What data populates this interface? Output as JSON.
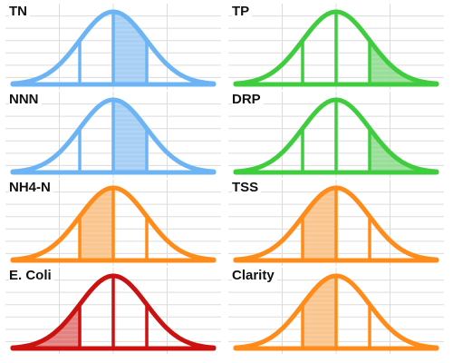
{
  "chart_data": [
    {
      "type": "area",
      "title": "TN",
      "color": "#6db4f5",
      "fill": "#9fcaf3",
      "shaded_segment": "center-right"
    },
    {
      "type": "area",
      "title": "TP",
      "color": "#3fcd3f",
      "fill": "#8edb8e",
      "shaded_segment": "right"
    },
    {
      "type": "area",
      "title": "NNN",
      "color": "#6db4f5",
      "fill": "#9fcaf3",
      "shaded_segment": "center-right"
    },
    {
      "type": "area",
      "title": "DRP",
      "color": "#3fcd3f",
      "fill": "#8edb8e",
      "shaded_segment": "right"
    },
    {
      "type": "area",
      "title": "NH4-N",
      "color": "#ff8c1a",
      "fill": "#f9c083",
      "shaded_segment": "center-left"
    },
    {
      "type": "area",
      "title": "TSS",
      "color": "#ff8c1a",
      "fill": "#f9c083",
      "shaded_segment": "center-left"
    },
    {
      "type": "area",
      "title": "E. Coli",
      "color": "#cc1111",
      "fill": "#e07272",
      "shaded_segment": "left"
    },
    {
      "type": "area",
      "title": "Clarity",
      "color": "#ff8c1a",
      "fill": "#f9c083",
      "shaded_segment": "center-left"
    }
  ]
}
